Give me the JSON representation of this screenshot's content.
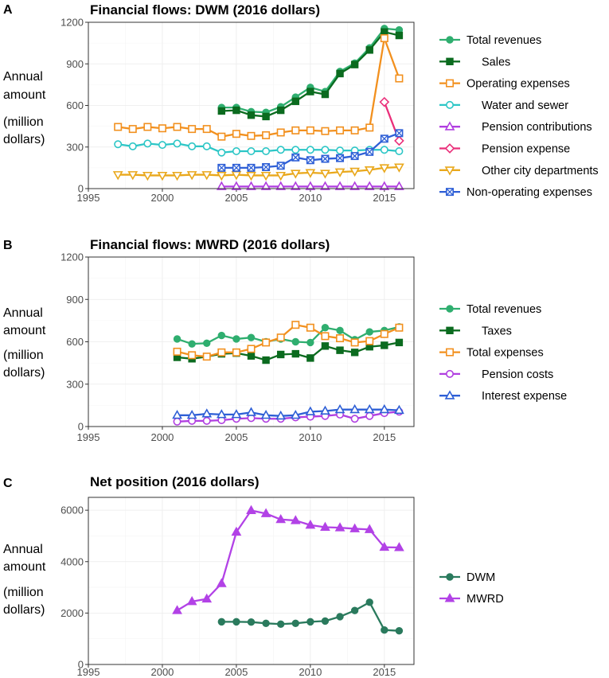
{
  "chart_data": [
    {
      "panel": "A",
      "type": "line",
      "title": "Financial flows: DWM  (2016 dollars)",
      "ylabel": [
        "Annual",
        "amount",
        "(million",
        "dollars)"
      ],
      "xlabel": "",
      "xlim": [
        1995,
        2017
      ],
      "ylim": [
        0,
        1200
      ],
      "xticks": [
        1995,
        2000,
        2005,
        2010,
        2015
      ],
      "yticks": [
        0,
        300,
        600,
        900,
        1200
      ],
      "grid": true,
      "legend": "right",
      "series": [
        {
          "name": "Total revenues",
          "indent": false,
          "color": "#2fae6f",
          "marker": "circle-filled",
          "x": [
            2004,
            2005,
            2006,
            2007,
            2008,
            2009,
            2010,
            2011,
            2012,
            2013,
            2014,
            2015,
            2016
          ],
          "y": [
            585,
            585,
            555,
            550,
            590,
            660,
            730,
            700,
            845,
            905,
            1015,
            1155,
            1145
          ]
        },
        {
          "name": "Sales",
          "indent": true,
          "color": "#0b6b1f",
          "marker": "square-filled",
          "x": [
            2004,
            2005,
            2006,
            2007,
            2008,
            2009,
            2010,
            2011,
            2012,
            2013,
            2014,
            2015,
            2016
          ],
          "y": [
            560,
            565,
            530,
            520,
            565,
            630,
            700,
            680,
            830,
            895,
            1000,
            1130,
            1105
          ]
        },
        {
          "name": "Operating expenses",
          "indent": false,
          "color": "#f2901e",
          "marker": "square-open",
          "x": [
            1997,
            1998,
            1999,
            2000,
            2001,
            2002,
            2003,
            2004,
            2005,
            2006,
            2007,
            2008,
            2009,
            2010,
            2011,
            2012,
            2013,
            2014,
            2015,
            2016
          ],
          "y": [
            445,
            430,
            445,
            435,
            445,
            430,
            430,
            375,
            395,
            380,
            385,
            405,
            420,
            420,
            415,
            420,
            420,
            440,
            1085,
            795
          ]
        },
        {
          "name": "Water and sewer",
          "indent": true,
          "color": "#2cc6c6",
          "marker": "circle-open",
          "x": [
            1997,
            1998,
            1999,
            2000,
            2001,
            2002,
            2003,
            2004,
            2005,
            2006,
            2007,
            2008,
            2009,
            2010,
            2011,
            2012,
            2013,
            2014,
            2015,
            2016
          ],
          "y": [
            320,
            305,
            325,
            315,
            325,
            305,
            305,
            260,
            270,
            270,
            270,
            280,
            280,
            280,
            280,
            275,
            275,
            280,
            280,
            270
          ]
        },
        {
          "name": "Pension contributions",
          "indent": true,
          "color": "#b03ee0",
          "marker": "triangle-open",
          "x": [
            2004,
            2005,
            2006,
            2007,
            2008,
            2009,
            2010,
            2011,
            2012,
            2013,
            2014,
            2015,
            2016
          ],
          "y": [
            15,
            15,
            15,
            15,
            15,
            15,
            15,
            15,
            15,
            15,
            15,
            15,
            15
          ]
        },
        {
          "name": "Pension expense",
          "indent": true,
          "color": "#ea2f7a",
          "marker": "diamond-open",
          "x": [
            2015,
            2016
          ],
          "y": [
            625,
            345
          ]
        },
        {
          "name": "Other city departments",
          "indent": true,
          "color": "#e9a81c",
          "marker": "triangle-down-open",
          "x": [
            1997,
            1998,
            1999,
            2000,
            2001,
            2002,
            2003,
            2004,
            2005,
            2006,
            2007,
            2008,
            2009,
            2010,
            2011,
            2012,
            2013,
            2014,
            2015,
            2016
          ],
          "y": [
            100,
            100,
            95,
            95,
            95,
            100,
            100,
            95,
            100,
            95,
            95,
            95,
            110,
            115,
            110,
            120,
            125,
            135,
            150,
            155
          ]
        },
        {
          "name": "Non-operating expenses",
          "indent": false,
          "color": "#2e5fd6",
          "marker": "square-x",
          "x": [
            2004,
            2005,
            2006,
            2007,
            2008,
            2009,
            2010,
            2011,
            2012,
            2013,
            2014,
            2015,
            2016
          ],
          "y": [
            150,
            150,
            150,
            155,
            165,
            225,
            205,
            215,
            220,
            235,
            265,
            360,
            400
          ]
        }
      ]
    },
    {
      "panel": "B",
      "type": "line",
      "title": "Financial flows: MWRD (2016 dollars)",
      "ylabel": [
        "Annual",
        "amount",
        "(million",
        "dollars)"
      ],
      "xlabel": "",
      "xlim": [
        1995,
        2017
      ],
      "ylim": [
        0,
        1200
      ],
      "xticks": [
        1995,
        2000,
        2005,
        2010,
        2015
      ],
      "yticks": [
        0,
        300,
        600,
        900,
        1200
      ],
      "grid": true,
      "legend": "right",
      "series": [
        {
          "name": "Total revenues",
          "indent": false,
          "color": "#2fae6f",
          "marker": "circle-filled",
          "x": [
            2001,
            2002,
            2003,
            2004,
            2005,
            2006,
            2007,
            2008,
            2009,
            2010,
            2011,
            2012,
            2013,
            2014,
            2015,
            2016
          ],
          "y": [
            620,
            585,
            590,
            645,
            620,
            630,
            600,
            620,
            600,
            595,
            700,
            680,
            615,
            670,
            680,
            705
          ]
        },
        {
          "name": "Taxes",
          "indent": true,
          "color": "#0b6b1f",
          "marker": "square-filled",
          "x": [
            2001,
            2002,
            2003,
            2004,
            2005,
            2006,
            2007,
            2008,
            2009,
            2010,
            2011,
            2012,
            2013,
            2014,
            2015,
            2016
          ],
          "y": [
            490,
            480,
            495,
            515,
            520,
            500,
            470,
            510,
            515,
            485,
            570,
            540,
            525,
            565,
            575,
            595
          ]
        },
        {
          "name": "Total expenses",
          "indent": false,
          "color": "#f2901e",
          "marker": "square-open",
          "x": [
            2001,
            2002,
            2003,
            2004,
            2005,
            2006,
            2007,
            2008,
            2009,
            2010,
            2011,
            2012,
            2013,
            2014,
            2015,
            2016
          ],
          "y": [
            530,
            505,
            495,
            525,
            525,
            550,
            595,
            630,
            720,
            700,
            640,
            625,
            595,
            605,
            655,
            700
          ]
        },
        {
          "name": "Pension costs",
          "indent": true,
          "color": "#b03ee0",
          "marker": "circle-open",
          "x": [
            2001,
            2002,
            2003,
            2004,
            2005,
            2006,
            2007,
            2008,
            2009,
            2010,
            2011,
            2012,
            2013,
            2014,
            2015,
            2016
          ],
          "y": [
            35,
            40,
            40,
            45,
            55,
            60,
            55,
            55,
            65,
            70,
            75,
            85,
            55,
            75,
            95,
            105
          ]
        },
        {
          "name": "Interest expense",
          "indent": true,
          "color": "#2e5fd6",
          "marker": "triangle-open",
          "x": [
            2001,
            2002,
            2003,
            2004,
            2005,
            2006,
            2007,
            2008,
            2009,
            2010,
            2011,
            2012,
            2013,
            2014,
            2015,
            2016
          ],
          "y": [
            80,
            80,
            90,
            85,
            85,
            100,
            80,
            75,
            80,
            105,
            110,
            120,
            120,
            120,
            120,
            115
          ]
        }
      ]
    },
    {
      "panel": "C",
      "type": "line",
      "title": "Net position (2016 dollars)",
      "ylabel": [
        "Annual",
        "amount",
        "(million",
        "dollars)"
      ],
      "xlabel": "",
      "xlim": [
        1995,
        2017
      ],
      "ylim": [
        0,
        6500
      ],
      "xticks": [
        1995,
        2000,
        2005,
        2010,
        2015
      ],
      "yticks": [
        0,
        2000,
        4000,
        6000
      ],
      "grid": true,
      "legend": "right",
      "series": [
        {
          "name": "DWM",
          "indent": false,
          "color": "#2a7a5d",
          "marker": "circle-filled",
          "x": [
            2004,
            2005,
            2006,
            2007,
            2008,
            2009,
            2010,
            2011,
            2012,
            2013,
            2014,
            2015,
            2016
          ],
          "y": [
            1660,
            1660,
            1650,
            1600,
            1570,
            1600,
            1660,
            1690,
            1860,
            2100,
            2420,
            1340,
            1310
          ]
        },
        {
          "name": "MWRD",
          "indent": false,
          "color": "#b242e6",
          "marker": "triangle-filled",
          "x": [
            2001,
            2002,
            2003,
            2004,
            2005,
            2006,
            2007,
            2008,
            2009,
            2010,
            2011,
            2012,
            2013,
            2014,
            2015,
            2016
          ],
          "y": [
            2100,
            2450,
            2550,
            3150,
            5150,
            5990,
            5870,
            5640,
            5600,
            5420,
            5340,
            5320,
            5280,
            5250,
            4560,
            4550
          ]
        }
      ]
    }
  ]
}
